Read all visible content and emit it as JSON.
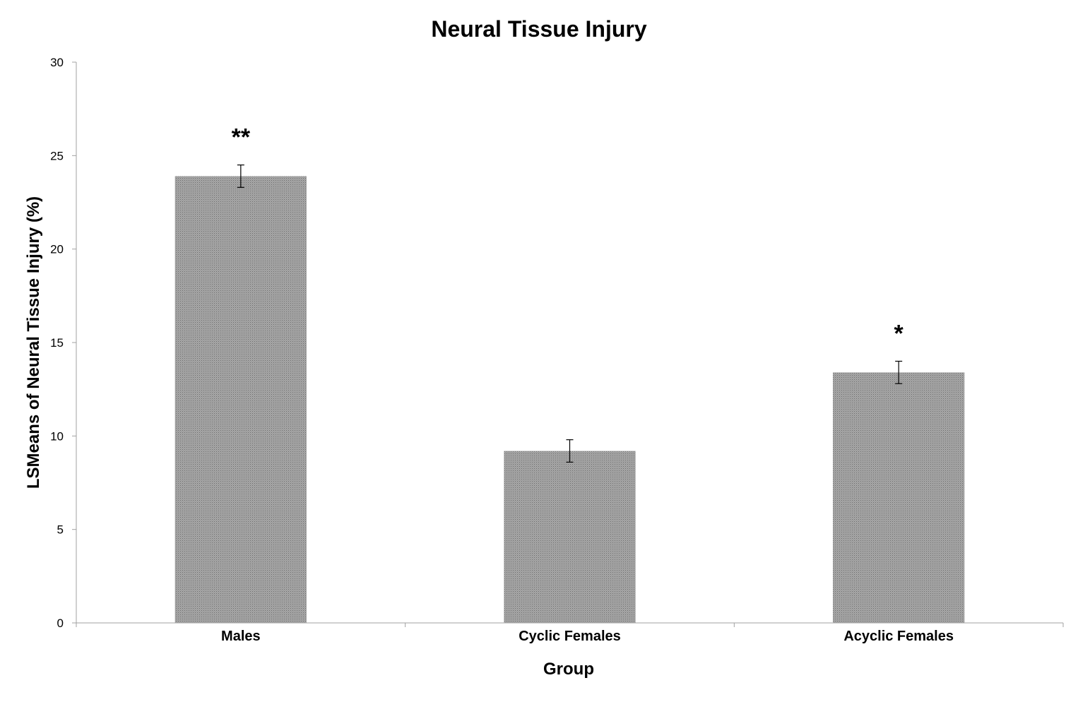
{
  "chart_data": {
    "type": "bar",
    "title": "Neural Tissue Injury",
    "xlabel": "Group",
    "ylabel": "LSMeans of Neural Tissue Injury (%)",
    "ylim": [
      0,
      30
    ],
    "yticks": [
      "0",
      "5",
      "10",
      "15",
      "20",
      "25",
      "30"
    ],
    "categories": [
      "Males",
      "Cyclic Females",
      "Acyclic Females"
    ],
    "values": [
      23.9,
      9.2,
      13.4
    ],
    "error": [
      0.6,
      0.6,
      0.6
    ],
    "significance": [
      "**",
      "",
      "*"
    ],
    "grid": false,
    "legend": "none",
    "colors": {
      "bar": "#9a9a9a",
      "axis": "#a0a0a0",
      "error_bar": "#000000"
    }
  }
}
